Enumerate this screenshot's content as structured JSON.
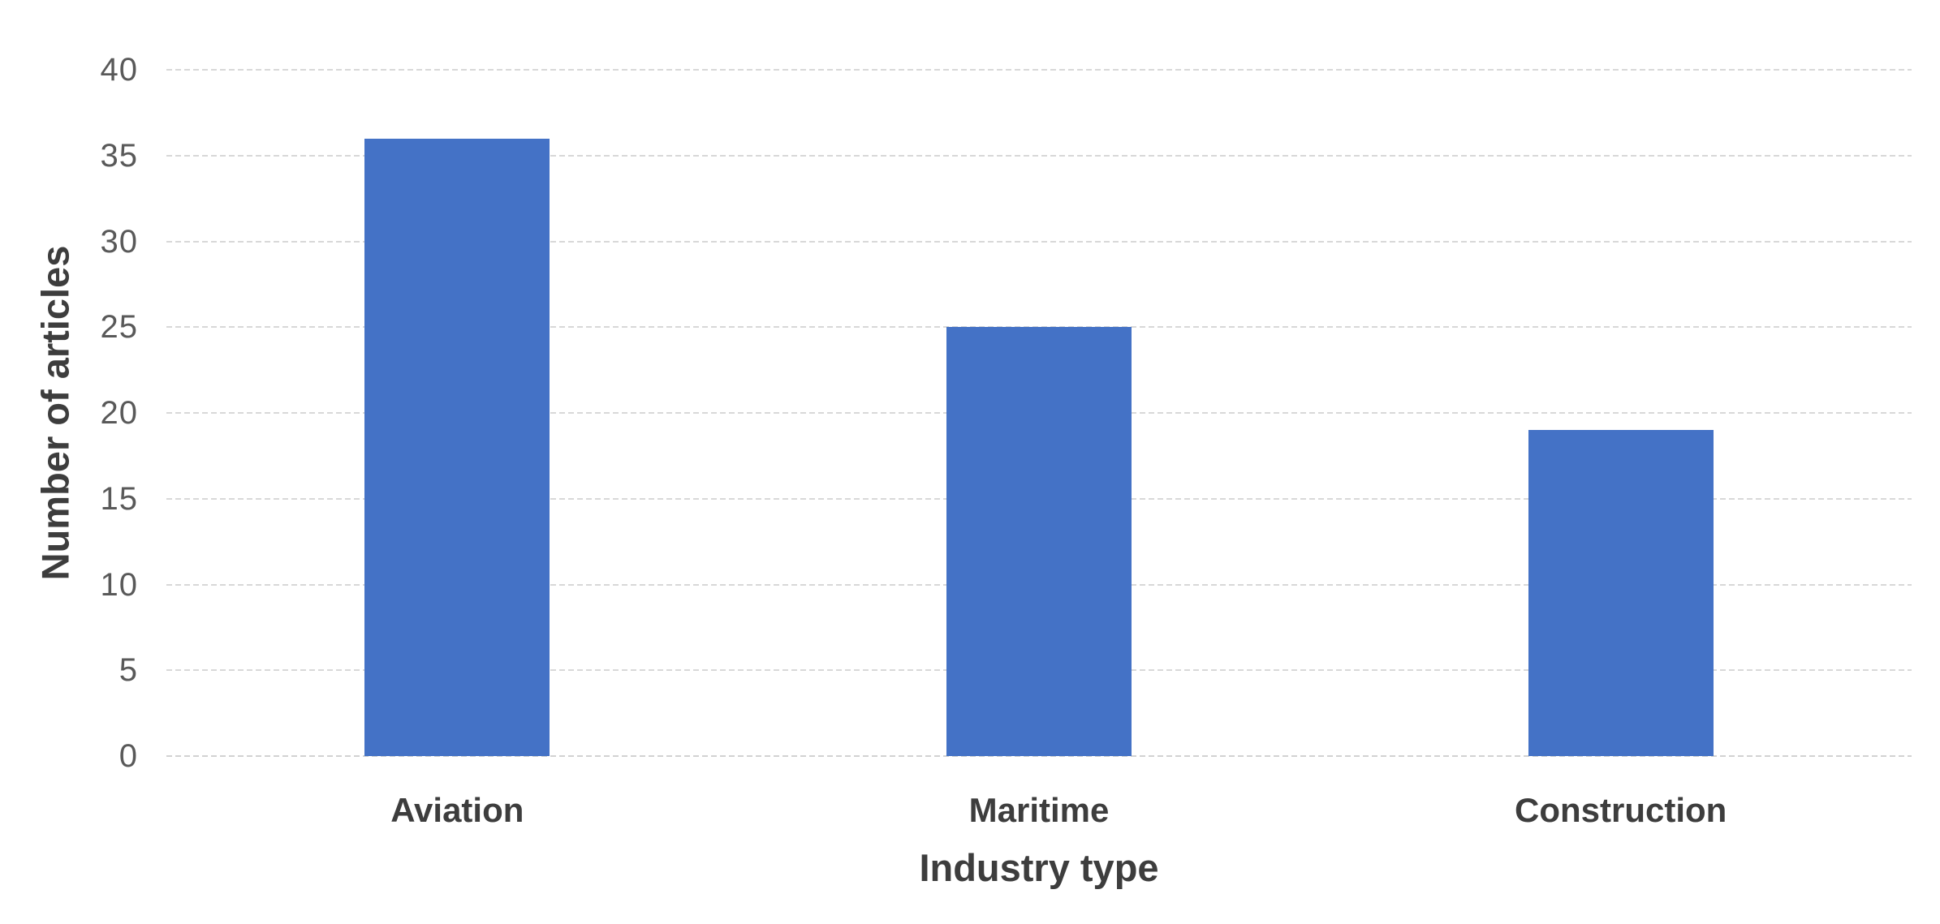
{
  "chart_data": {
    "type": "bar",
    "title": "",
    "categories": [
      "Aviation",
      "Maritime",
      "Construction"
    ],
    "values": [
      36,
      25,
      19
    ],
    "xlabel": "Industry type",
    "ylabel": "Number of articles",
    "ylim": [
      0,
      40
    ],
    "yticks": [
      0,
      5,
      10,
      15,
      20,
      25,
      30,
      35,
      40
    ],
    "grid": true,
    "legend_position": "none",
    "colors": {
      "bar_fill": "#4472C6",
      "gridline": "#D8D8D8",
      "tick_label": "#595959",
      "axis_title": "#3D3D3D",
      "background": "#FFFFFF"
    }
  }
}
